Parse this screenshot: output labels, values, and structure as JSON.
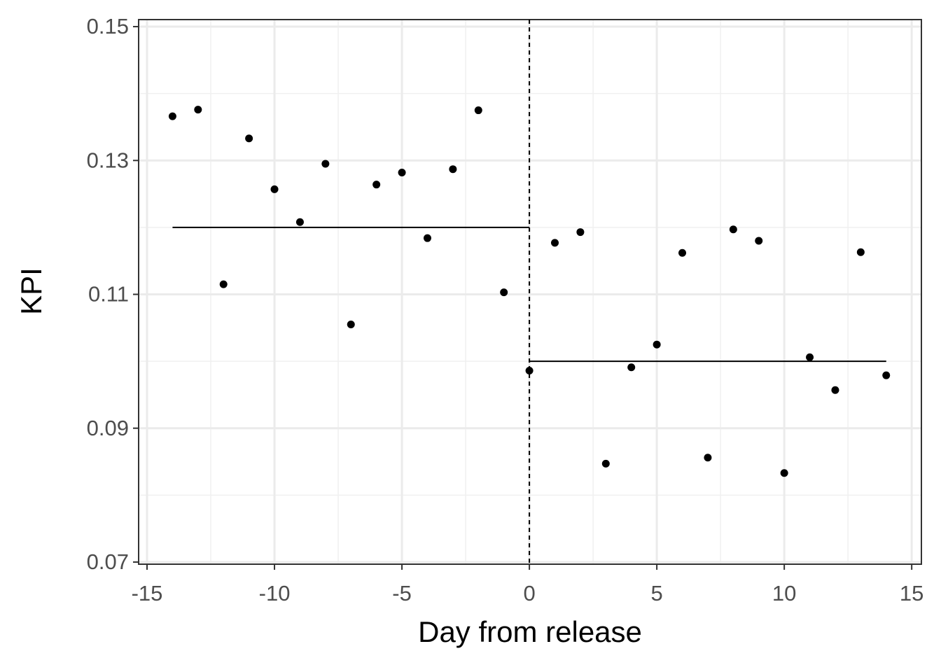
{
  "chart_data": {
    "type": "scatter",
    "xlabel": "Day from release",
    "ylabel": "KPI",
    "x": [
      -14,
      -13,
      -12,
      -11,
      -10,
      -9,
      -8,
      -7,
      -6,
      -5,
      -4,
      -3,
      -2,
      -1,
      0,
      1,
      2,
      3,
      4,
      5,
      6,
      7,
      8,
      9,
      10,
      11,
      12,
      13,
      14
    ],
    "y": [
      0.1366,
      0.1376,
      0.1115,
      0.1333,
      0.1257,
      0.1208,
      0.1295,
      0.1055,
      0.1264,
      0.1282,
      0.1184,
      0.1287,
      0.1375,
      0.1103,
      0.0986,
      0.1177,
      0.1193,
      0.0847,
      0.0991,
      0.1025,
      0.1162,
      0.0856,
      0.1197,
      0.118,
      0.0833,
      0.1006,
      0.0957,
      0.1163,
      0.0979
    ],
    "color": "#000000",
    "segments": [
      {
        "x": [
          -14,
          0
        ],
        "y": [
          0.12,
          0.12
        ]
      },
      {
        "x": [
          0,
          14
        ],
        "y": [
          0.1,
          0.1
        ]
      }
    ],
    "vline": 0,
    "xlim": [
      -15.33,
      15.38
    ],
    "xticks": [
      -15,
      -10,
      -5,
      0,
      5,
      10,
      15
    ],
    "ylim": [
      0.06968,
      0.15105
    ],
    "yticks": [
      0.07,
      0.09,
      0.11,
      0.13,
      0.15
    ],
    "grid": true
  }
}
